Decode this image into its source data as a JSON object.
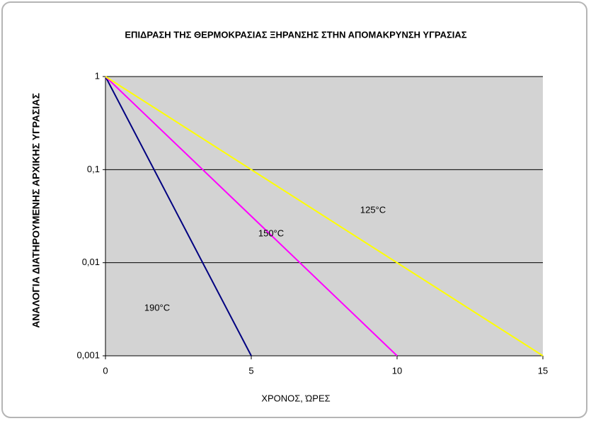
{
  "chart_data": {
    "type": "line",
    "title": "ΕΠΙΔΡΑΣΗ ΤΗΣ ΘΕΡΜΟΚΡΑΣΙΑΣ ΞΗΡΑΝΣΗΣ ΣΤΗΝ ΑΠΟΜΑΚΡΥΝΣΗ ΥΓΡΑΣΙΑΣ",
    "x_label": "ΧΡΟΝΟΣ, ΏΡΕΣ",
    "y_label": "ΑΝΑΛΟΓΙΑ ΔΙΑΤΗΡΟΥΜΕΝΗΣ ΑΡΧΙΚΗΣ ΥΓΡΑΣΙΑΣ",
    "series": [
      {
        "name": "190°C",
        "color": "#000080",
        "x": [
          0,
          5
        ],
        "values": [
          1,
          0.001
        ]
      },
      {
        "name": "150°C",
        "color": "#ff00ff",
        "x": [
          0,
          10
        ],
        "values": [
          1,
          0.001
        ]
      },
      {
        "name": "125°C",
        "color": "#ffff00",
        "x": [
          0,
          15
        ],
        "values": [
          1,
          0.001
        ]
      }
    ],
    "xlim": [
      0,
      15
    ],
    "xticks": [
      0,
      5,
      10,
      15
    ],
    "ylim": [
      0.001,
      1
    ],
    "log_y": true,
    "yticks": [
      {
        "value": 0.001,
        "label": "0,001"
      },
      {
        "value": 0.01,
        "label": "0,01"
      },
      {
        "value": 0.1,
        "label": "0,1"
      },
      1
    ],
    "grid": true
  }
}
